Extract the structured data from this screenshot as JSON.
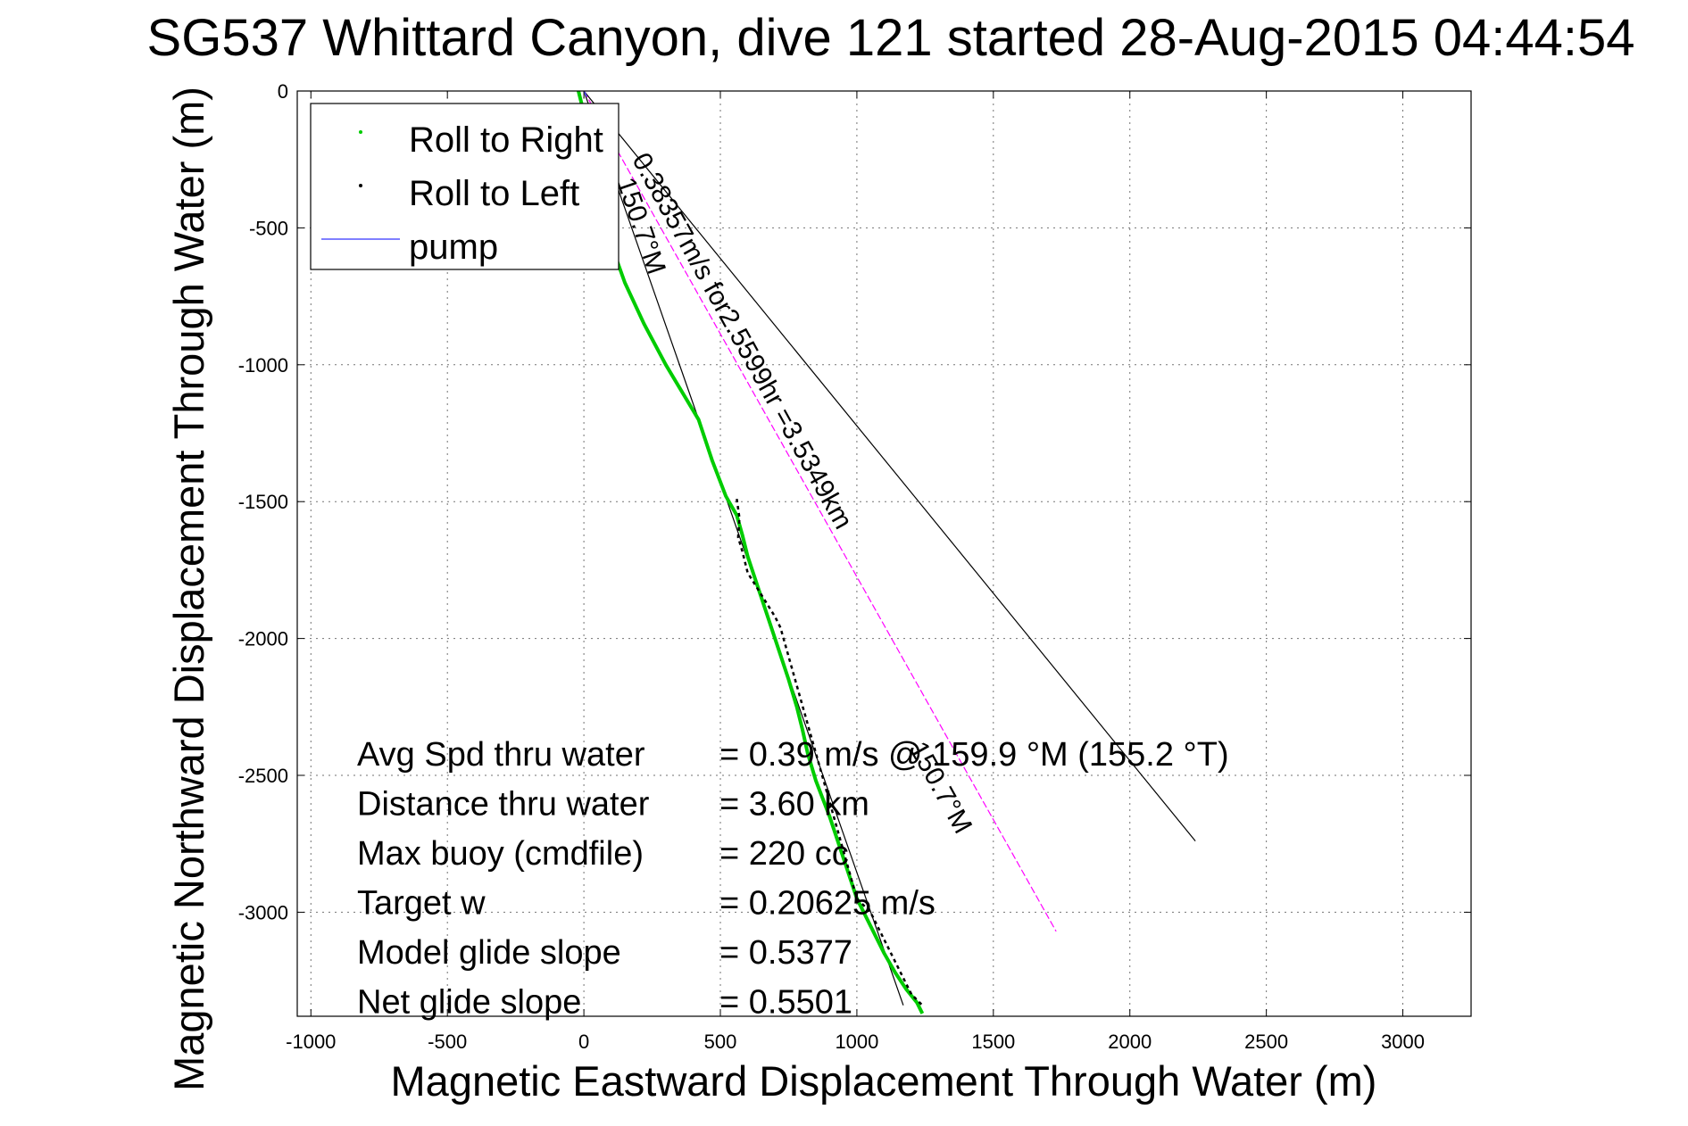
{
  "chart_data": {
    "type": "line",
    "title": "SG537 Whittard Canyon, dive 121 started 28-Aug-2015 04:44:54",
    "xlabel": "Magnetic Eastward Displacement Through Water (m)",
    "ylabel": "Magnetic Northward Displacement Through Water (m)",
    "xlim": [
      -1050,
      3250
    ],
    "ylim": [
      -3380,
      0
    ],
    "xticks": [
      -1000,
      -500,
      0,
      500,
      1000,
      1500,
      2000,
      2500,
      3000
    ],
    "xtick_labels": [
      "-1000",
      "-500",
      "0",
      "500",
      "1000",
      "1500",
      "2000",
      "2500",
      "3000"
    ],
    "yticks": [
      0,
      -500,
      -1000,
      -1500,
      -2000,
      -2500,
      -3000
    ],
    "ytick_labels": [
      "0",
      "-500",
      "-1000",
      "-1500",
      "-2000",
      "-2500",
      "-3000"
    ],
    "grid": true,
    "legend": {
      "position": "top-left",
      "entries": [
        {
          "label": "Roll to Right",
          "color": "#00cc00",
          "marker": "point"
        },
        {
          "label": "Roll to Left",
          "color": "#000000",
          "marker": "point"
        },
        {
          "label": "pump",
          "color": "#5555ff",
          "marker": "line"
        }
      ]
    },
    "series": [
      {
        "name": "Roll to Right",
        "color": "#00cc00",
        "x": [
          -20,
          0,
          30,
          60,
          100,
          150,
          220,
          300,
          360,
          420,
          470,
          520,
          560,
          580,
          600,
          650,
          700,
          750,
          780,
          800,
          820,
          850,
          900,
          950,
          1000,
          1050,
          1100,
          1140,
          1180,
          1220,
          1240
        ],
        "y": [
          0,
          -80,
          -250,
          -420,
          -560,
          -700,
          -850,
          -1000,
          -1100,
          -1200,
          -1350,
          -1480,
          -1550,
          -1620,
          -1700,
          -1850,
          -2000,
          -2150,
          -2250,
          -2330,
          -2420,
          -2520,
          -2650,
          -2800,
          -2950,
          -3050,
          -3150,
          -3220,
          -3280,
          -3330,
          -3370
        ]
      },
      {
        "name": "Roll to Left",
        "color": "#000000",
        "x": [
          560,
          570,
          565,
          580,
          600,
          700,
          720,
          1000,
          1050,
          1200,
          1240
        ],
        "y": [
          -1490,
          -1560,
          -1630,
          -1680,
          -1760,
          -1920,
          -1960,
          -2950,
          -3000,
          -3300,
          -3340
        ]
      },
      {
        "name": "pump",
        "color": "#5555ff",
        "x": [
          0,
          10
        ],
        "y": [
          0,
          -20
        ]
      }
    ],
    "reference_lines": [
      {
        "x": [
          0,
          2240
        ],
        "y": [
          0,
          -2740
        ],
        "color": "#000000"
      },
      {
        "x": [
          0,
          1170
        ],
        "y": [
          0,
          -3340
        ],
        "color": "#000000"
      },
      {
        "x": [
          0,
          1730
        ],
        "y": [
          0,
          -3070
        ],
        "color": "#ff00ff",
        "dashed": true
      }
    ],
    "annotations": [
      {
        "text": "0.38357m/s for2.5599hr =3.5349km",
        "x": 175,
        "y": -250,
        "angle": 61
      },
      {
        "text": "150.7°M",
        "x": 120,
        "y": -330,
        "angle": 71
      },
      {
        "text": "150.7°M",
        "x": 1190,
        "y": -2400,
        "angle": 61
      }
    ],
    "stats": [
      {
        "label": "Avg Spd thru water",
        "value": "=  0.39 m/s @ 159.9 °M (155.2 °T)"
      },
      {
        "label": "Distance thru water",
        "value": "=  3.60 km"
      },
      {
        "label": "Max buoy (cmdfile)",
        "value": "= 220 cc"
      },
      {
        "label": "Target w",
        "value": "= 0.20625 m/s"
      },
      {
        "label": "Model glide slope",
        "value": "= 0.5377"
      },
      {
        "label": "Net glide slope",
        "value": "= 0.5501"
      }
    ]
  }
}
